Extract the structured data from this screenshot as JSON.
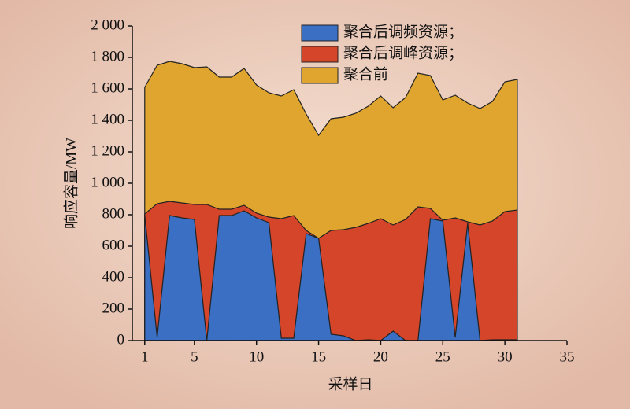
{
  "chart_data": {
    "type": "area",
    "x": [
      1,
      2,
      3,
      4,
      5,
      6,
      7,
      8,
      9,
      10,
      11,
      12,
      13,
      14,
      15,
      16,
      17,
      18,
      19,
      20,
      21,
      22,
      23,
      24,
      25,
      26,
      27,
      28,
      29,
      30,
      31
    ],
    "series": [
      {
        "name": "聚合前",
        "color": "#e0a52e",
        "values": [
          1610,
          1750,
          1775,
          1760,
          1735,
          1740,
          1675,
          1675,
          1730,
          1625,
          1575,
          1555,
          1595,
          1440,
          1305,
          1410,
          1420,
          1445,
          1490,
          1555,
          1480,
          1545,
          1700,
          1685,
          1530,
          1560,
          1510,
          1475,
          1520,
          1645,
          1660
        ]
      },
      {
        "name": "聚合后调峰资源；",
        "color": "#d4452a",
        "values": [
          805,
          870,
          885,
          875,
          865,
          865,
          835,
          835,
          860,
          810,
          785,
          775,
          795,
          700,
          650,
          700,
          705,
          720,
          745,
          775,
          735,
          770,
          850,
          840,
          765,
          780,
          755,
          735,
          760,
          820,
          830
        ]
      },
      {
        "name": "聚合后调频资源；",
        "color": "#3a6fc4",
        "values": [
          800,
          20,
          795,
          780,
          770,
          0,
          795,
          795,
          825,
          780,
          750,
          15,
          15,
          680,
          650,
          40,
          30,
          0,
          5,
          0,
          60,
          0,
          0,
          775,
          760,
          20,
          745,
          0,
          5,
          5,
          5
        ]
      }
    ],
    "xlabel": "采样日",
    "ylabel": "响应容量/MW",
    "xlim": [
      0,
      35
    ],
    "xticks": [
      1,
      5,
      10,
      15,
      20,
      25,
      30,
      35
    ],
    "ylim": [
      0,
      2000
    ],
    "yticks": [
      0,
      200,
      400,
      600,
      800,
      {
        "value": 1000,
        "label": "1 000"
      },
      {
        "value": 1200,
        "label": "1 200"
      },
      {
        "value": 1400,
        "label": "1 400"
      },
      {
        "value": 1600,
        "label": "1 600"
      },
      {
        "value": 1800,
        "label": "1 800"
      },
      {
        "value": 2000,
        "label": "2 000"
      }
    ],
    "legend_order": [
      2,
      1,
      0
    ]
  }
}
